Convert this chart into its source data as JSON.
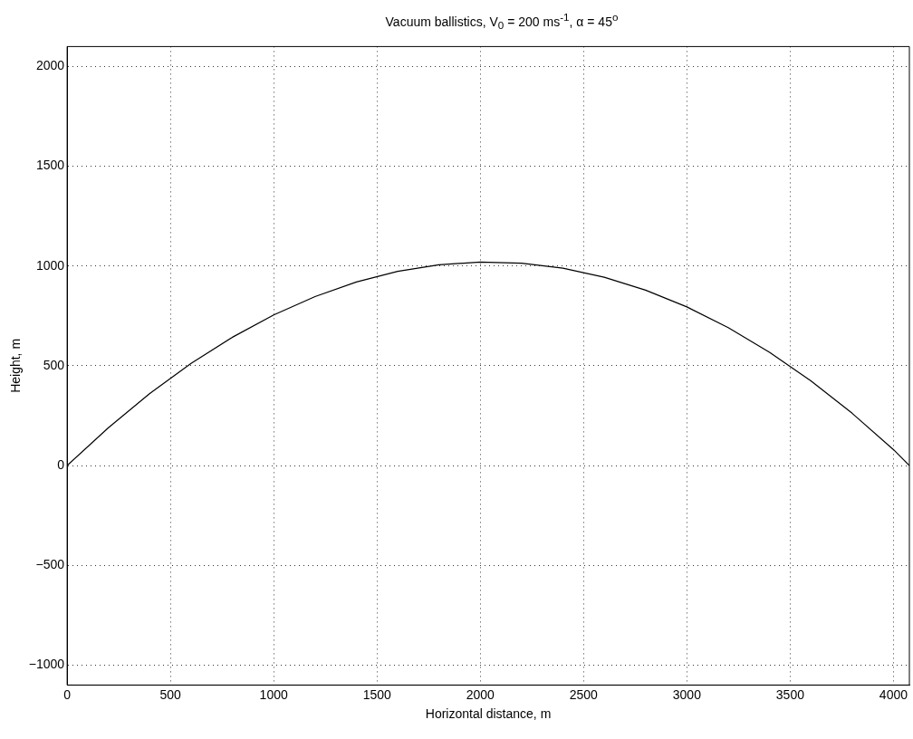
{
  "chart_data": {
    "type": "line",
    "title": "Vacuum ballistics, V$_{0}$ = 200 ms$^{-1}$, α = 45$^{o}$",
    "xlabel": "Horizontal distance, m",
    "ylabel": "Height, m",
    "x": [
      0,
      200,
      400,
      600,
      800,
      1000,
      1200,
      1400,
      1600,
      1800,
      2000,
      2039,
      2200,
      2400,
      2600,
      2800,
      3000,
      3200,
      3400,
      3600,
      3800,
      4000,
      4077
    ],
    "series": [
      {
        "color": "#000000",
        "values": [
          0,
          190,
          361,
          512,
          643,
          755,
          847,
          920,
          973,
          1006,
          1020,
          1019,
          1014,
          989,
          944,
          879,
          795,
          691,
          568,
          425,
          262,
          80,
          0
        ]
      }
    ],
    "xlim": [
      0,
      4077
    ],
    "xticks": [
      0,
      500,
      1000,
      1500,
      2000,
      2500,
      3000,
      3500,
      4000
    ],
    "ylim": [
      -1100,
      2100
    ],
    "yticks": [
      -1000,
      -500,
      0,
      500,
      1000,
      1500,
      2000
    ],
    "grid": true,
    "legend": false,
    "marker": "none",
    "line_style": "solid"
  }
}
